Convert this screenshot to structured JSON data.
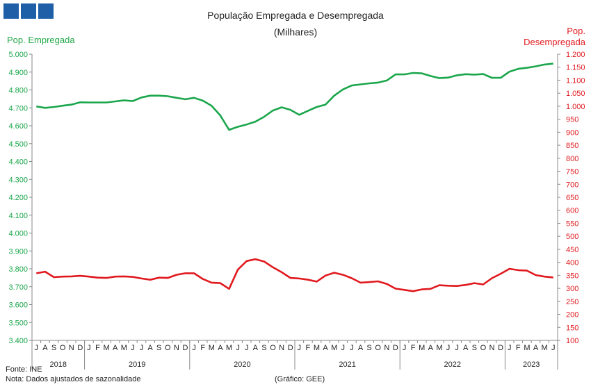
{
  "header": {
    "title": "População  Empregada  e Desempregada",
    "subtitle": "(Milhares)"
  },
  "footer": {
    "source": "Fonte: INE",
    "note": "Nota:  Dados ajustados  de sazonalidade",
    "credit": "(Gráfico: GEE)"
  },
  "colors": {
    "employed": "#1aa64b",
    "unemployed": "#e0191e",
    "logo": "#1f5fa8"
  },
  "chart_data": {
    "type": "line",
    "title": "População  Empregada  e Desempregada",
    "subtitle": "(Milhares)",
    "ylabel_left": "Pop. Empregada",
    "ylabel_right": [
      "Pop.",
      "Desempregada"
    ],
    "ylim_left": [
      3400,
      5000
    ],
    "ylim_right": [
      100,
      1200
    ],
    "yticks_left": [
      "3.400",
      "3.500",
      "3.600",
      "3.700",
      "3.800",
      "3.900",
      "4.000",
      "4.100",
      "4.200",
      "4.300",
      "4.400",
      "4.500",
      "4.600",
      "4.700",
      "4.800",
      "4.900",
      "5.000"
    ],
    "yticks_right": [
      "100",
      "150",
      "200",
      "250",
      "300",
      "350",
      "400",
      "450",
      "500",
      "550",
      "600",
      "650",
      "700",
      "750",
      "800",
      "850",
      "900",
      "950",
      "1.000",
      "1.050",
      "1.100",
      "1.150",
      "1.200"
    ],
    "grid": false,
    "x_months": [
      "J",
      "A",
      "S",
      "O",
      "N",
      "D",
      "J",
      "F",
      "M",
      "A",
      "M",
      "J",
      "J",
      "A",
      "S",
      "O",
      "N",
      "D",
      "J",
      "F",
      "M",
      "A",
      "M",
      "J",
      "J",
      "A",
      "S",
      "O",
      "N",
      "D",
      "J",
      "F",
      "M",
      "A",
      "M",
      "J",
      "J",
      "A",
      "S",
      "O",
      "N",
      "D",
      "J",
      "F",
      "M",
      "A",
      "M",
      "J",
      "J",
      "A",
      "S",
      "O",
      "N",
      "D",
      "J",
      "F",
      "M",
      "A",
      "M",
      "J"
    ],
    "year_groups": [
      {
        "label": "2018",
        "start": 0,
        "count": 6
      },
      {
        "label": "2019",
        "start": 6,
        "count": 12
      },
      {
        "label": "2020",
        "start": 18,
        "count": 12
      },
      {
        "label": "2021",
        "start": 30,
        "count": 12
      },
      {
        "label": "2022",
        "start": 42,
        "count": 12
      },
      {
        "label": "2023",
        "start": 54,
        "count": 6
      }
    ],
    "series": [
      {
        "name": "Pop. Empregada",
        "axis": "left",
        "values": [
          4708,
          4700,
          4705,
          4712,
          4718,
          4731,
          4730,
          4730,
          4730,
          4736,
          4742,
          4738,
          4758,
          4768,
          4768,
          4765,
          4756,
          4748,
          4756,
          4740,
          4712,
          4657,
          4577,
          4594,
          4607,
          4623,
          4650,
          4685,
          4703,
          4689,
          4661,
          4683,
          4705,
          4718,
          4768,
          4803,
          4825,
          4831,
          4837,
          4841,
          4853,
          4887,
          4887,
          4895,
          4893,
          4878,
          4866,
          4869,
          4882,
          4888,
          4886,
          4889,
          4868,
          4868,
          4902,
          4918,
          4924,
          4932,
          4942,
          4947
        ]
      },
      {
        "name": "Pop. Desempregada",
        "axis": "right",
        "values": [
          358,
          364,
          343,
          345,
          346,
          348,
          345,
          341,
          340,
          345,
          346,
          344,
          338,
          333,
          341,
          340,
          352,
          358,
          358,
          336,
          322,
          320,
          298,
          372,
          405,
          412,
          403,
          381,
          362,
          340,
          338,
          333,
          326,
          349,
          360,
          352,
          339,
          322,
          324,
          327,
          317,
          299,
          294,
          289,
          296,
          298,
          312,
          310,
          309,
          313,
          320,
          315,
          339,
          356,
          375,
          370,
          368,
          351,
          345,
          342
        ]
      }
    ]
  }
}
